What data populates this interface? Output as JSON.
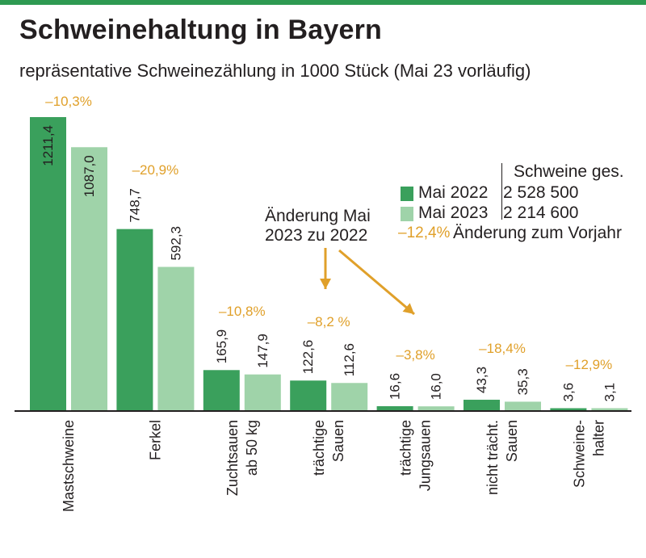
{
  "title": "Schweinehaltung in Bayern",
  "subtitle": "repräsentative Schweinezählung in 1000 Stück (Mai 23 vorläufig)",
  "colors": {
    "bar_2022": "#3aa05c",
    "bar_2023": "#9fd3a9",
    "change": "#e0a02a",
    "bar_top": "#2e9a52",
    "text": "#231f20"
  },
  "legend": {
    "header": "Schweine ges.",
    "series_2022_label": "Mai 2022",
    "series_2022_total": "2 528 500",
    "series_2023_label": "Mai 2023",
    "series_2023_total": "2 214 600",
    "change_sample": "–12,4%",
    "change_label": "Änderung zum Vorjahr"
  },
  "annotation": {
    "line1": "Änderung Mai",
    "line2": "2023 zu 2022"
  },
  "chart_data": {
    "type": "bar",
    "categories": [
      [
        "Mastschweine"
      ],
      [
        "Ferkel"
      ],
      [
        "Zuchtsauen",
        "ab 50 kg"
      ],
      [
        "trächtige",
        "Sauen"
      ],
      [
        "trächtige",
        "Jungsauen"
      ],
      [
        "nicht trächt.",
        "Sauen"
      ],
      [
        "Schweine-",
        "halter"
      ]
    ],
    "series": [
      {
        "name": "Mai 2022",
        "values": [
          1211.4,
          748.7,
          165.9,
          122.6,
          16.6,
          43.3,
          3.6
        ],
        "labels": [
          "1211,4",
          "748,7",
          "165,9",
          "122,6",
          "16,6",
          "43,3",
          "3,6"
        ]
      },
      {
        "name": "Mai 2023",
        "values": [
          1087.0,
          592.3,
          147.9,
          112.6,
          16.0,
          35.3,
          3.1
        ],
        "labels": [
          "1087,0",
          "592,3",
          "147,9",
          "112,6",
          "16,0",
          "35,3",
          "3,1"
        ]
      }
    ],
    "changes": [
      "–10,3%",
      "–20,9%",
      "–10,8%",
      "–8,2 %",
      "–3,8%",
      "–18,4%",
      "–12,9%"
    ],
    "ylim": [
      0,
      1211.4
    ]
  }
}
